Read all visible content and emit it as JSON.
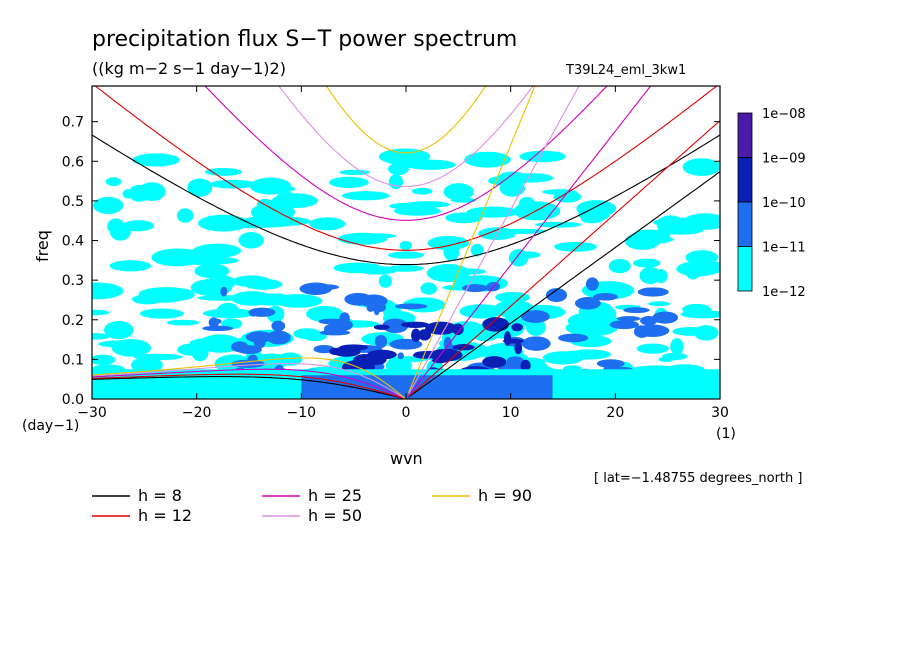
{
  "chart_data": {
    "type": "heatmap",
    "title": "precipitation flux S−T power spectrum",
    "units": "((kg m−2 s−1 day−1)2)",
    "experiment": "T39L24_eml_3kw1",
    "xlabel": "wvn",
    "ylabel": "freq",
    "x_unit_label": "(1)",
    "y_unit_label": "(day−1)",
    "xlim": [
      -30,
      30
    ],
    "ylim": [
      0,
      0.79
    ],
    "x_ticks": [
      "−30",
      "−20",
      "−10",
      "0",
      "10",
      "20",
      "30"
    ],
    "x_tick_values": [
      -30,
      -20,
      -10,
      0,
      10,
      20,
      30
    ],
    "y_ticks": [
      "0.0",
      "0.1",
      "0.2",
      "0.3",
      "0.4",
      "0.5",
      "0.6",
      "0.7"
    ],
    "y_tick_values": [
      0.0,
      0.1,
      0.2,
      0.3,
      0.4,
      0.5,
      0.6,
      0.7
    ],
    "footnote": "[ lat=−1.48755 degrees_north ]",
    "colorbar": {
      "labels": [
        "1e−08",
        "1e−09",
        "1e−10",
        "1e−11",
        "1e−12"
      ],
      "colors": [
        "#4a1aa8",
        "#0a20b4",
        "#1e6ef0",
        "#00ffff"
      ]
    },
    "spectrum_regions": [
      {
        "level": "1e-12 to 1e-11",
        "color": "#00ffff",
        "x_range": [
          -30,
          30
        ],
        "y_range": [
          0.0,
          0.62
        ]
      },
      {
        "level": "1e-11 to 1e-10",
        "color": "#1e6ef0",
        "x_range": [
          -20,
          25
        ],
        "y_range": [
          0.0,
          0.3
        ]
      },
      {
        "level": "1e-10 to 1e-09",
        "color": "#0a20b4",
        "x_range": [
          -8,
          12
        ],
        "y_range": [
          0.0,
          0.2
        ]
      }
    ],
    "dispersion_curves": [
      {
        "h": 8,
        "color": "#000000"
      },
      {
        "h": 12,
        "color": "#e00000"
      },
      {
        "h": 25,
        "color": "#d000c0"
      },
      {
        "h": 50,
        "color": "#e090e0"
      },
      {
        "h": 90,
        "color": "#f0c000"
      }
    ],
    "legend": [
      {
        "label": "h =  8",
        "color": "#000000"
      },
      {
        "label": "h = 12",
        "color": "#e00000"
      },
      {
        "label": "h = 25",
        "color": "#d000c0"
      },
      {
        "label": "h = 50",
        "color": "#e090e0"
      },
      {
        "label": "h = 90",
        "color": "#f0c000"
      }
    ]
  }
}
